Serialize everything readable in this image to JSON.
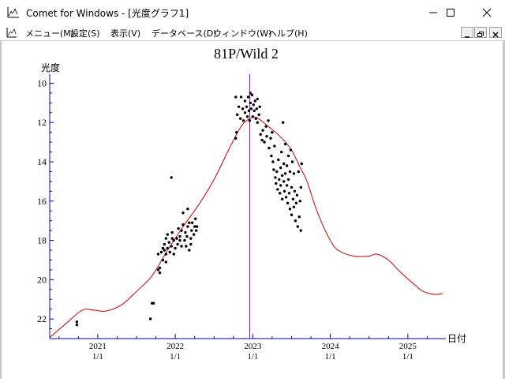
{
  "window": {
    "title": "Comet for Windows - [光度グラフ1]",
    "app_icon": "chart-app-icon",
    "controls": {
      "minimize": "minimize-icon",
      "maximize": "maximize-icon",
      "close": "close-icon"
    }
  },
  "menu": {
    "items": [
      {
        "label": "メニュー(M)"
      },
      {
        "label": "設定(S)"
      },
      {
        "label": "表示(V)"
      },
      {
        "label": "データベース(D)"
      },
      {
        "label": "ウィンドウ(W)"
      },
      {
        "label": "ヘルプ(H)"
      }
    ],
    "mdi_controls": {
      "minimize": "mdi-minimize-icon",
      "restore": "mdi-restore-icon",
      "close": "mdi-close-icon"
    }
  },
  "chart_data": {
    "type": "scatter",
    "title": "81P/Wild 2",
    "ylabel": "光度",
    "xlabel": "日付",
    "y_inverted": true,
    "ylim": [
      23,
      9.7
    ],
    "xlim": [
      2020.38,
      2025.47
    ],
    "yticks": [
      10,
      12,
      14,
      16,
      18,
      20,
      22
    ],
    "xticks": [
      {
        "value": 2021,
        "year": "2021",
        "date": "1/1"
      },
      {
        "value": 2022,
        "year": "2022",
        "date": "1/1"
      },
      {
        "value": 2023,
        "year": "2023",
        "date": "1/1"
      },
      {
        "value": 2024,
        "year": "2024",
        "date": "1/1"
      },
      {
        "value": 2025,
        "year": "2025",
        "date": "1/1"
      }
    ],
    "perihelion_marker": 2022.96,
    "colors": {
      "curve": "#cc0000",
      "points": "#000000",
      "marker": "#9900cc",
      "axes": "#0000aa"
    },
    "curve": [
      [
        2020.38,
        22.95
      ],
      [
        2020.6,
        22.2
      ],
      [
        2020.8,
        21.55
      ],
      [
        2020.95,
        21.55
      ],
      [
        2021.1,
        21.6
      ],
      [
        2021.3,
        21.3
      ],
      [
        2021.5,
        20.6
      ],
      [
        2021.7,
        19.8
      ],
      [
        2021.9,
        18.5
      ],
      [
        2022.1,
        17.3
      ],
      [
        2022.3,
        16.2
      ],
      [
        2022.5,
        14.9
      ],
      [
        2022.7,
        13.3
      ],
      [
        2022.85,
        12.2
      ],
      [
        2022.96,
        11.8
      ],
      [
        2023.05,
        11.75
      ],
      [
        2023.2,
        12.2
      ],
      [
        2023.35,
        12.7
      ],
      [
        2023.5,
        13.4
      ],
      [
        2023.6,
        14.2
      ],
      [
        2023.7,
        15.0
      ],
      [
        2023.8,
        16.2
      ],
      [
        2023.9,
        17.2
      ],
      [
        2024.0,
        18.0
      ],
      [
        2024.1,
        18.5
      ],
      [
        2024.3,
        18.8
      ],
      [
        2024.5,
        18.8
      ],
      [
        2024.6,
        18.7
      ],
      [
        2024.75,
        19.0
      ],
      [
        2024.9,
        19.6
      ],
      [
        2025.1,
        20.3
      ],
      [
        2025.2,
        20.6
      ],
      [
        2025.35,
        20.75
      ],
      [
        2025.45,
        20.7
      ]
    ],
    "observations": [
      [
        20.73,
        22.15
      ],
      [
        20.73,
        22.3
      ],
      [
        21.68,
        22.0
      ],
      [
        21.7,
        21.2
      ],
      [
        21.72,
        21.2
      ],
      [
        21.78,
        19.5
      ],
      [
        21.8,
        19.65
      ],
      [
        21.8,
        19.4
      ],
      [
        21.78,
        18.7
      ],
      [
        21.82,
        18.6
      ],
      [
        21.84,
        19.0
      ],
      [
        21.84,
        18.4
      ],
      [
        21.86,
        18.2
      ],
      [
        21.86,
        18.5
      ],
      [
        21.88,
        18.7
      ],
      [
        21.88,
        17.9
      ],
      [
        21.88,
        19.1
      ],
      [
        21.9,
        18.4
      ],
      [
        21.9,
        17.7
      ],
      [
        21.92,
        18.1
      ],
      [
        21.93,
        18.6
      ],
      [
        21.95,
        18.3
      ],
      [
        21.95,
        14.8
      ],
      [
        21.96,
        17.9
      ],
      [
        21.96,
        17.6
      ],
      [
        21.98,
        18.0
      ],
      [
        21.98,
        18.7
      ],
      [
        22.0,
        18.4
      ],
      [
        22.02,
        17.9
      ],
      [
        22.03,
        18.2
      ],
      [
        22.04,
        17.4
      ],
      [
        22.06,
        18.0
      ],
      [
        22.06,
        17.8
      ],
      [
        22.08,
        18.3
      ],
      [
        22.08,
        17.5
      ],
      [
        22.1,
        17.2
      ],
      [
        22.1,
        16.6
      ],
      [
        22.12,
        18.0
      ],
      [
        22.13,
        17.6
      ],
      [
        22.14,
        18.3
      ],
      [
        22.15,
        17.8
      ],
      [
        22.16,
        17.3
      ],
      [
        22.16,
        16.4
      ],
      [
        22.18,
        18.5
      ],
      [
        22.18,
        17.1
      ],
      [
        22.2,
        18.2
      ],
      [
        22.2,
        17.9
      ],
      [
        22.21,
        17.5
      ],
      [
        22.22,
        17.1
      ],
      [
        22.24,
        17.7
      ],
      [
        22.25,
        17.3
      ],
      [
        22.26,
        16.9
      ],
      [
        22.27,
        17.5
      ],
      [
        22.28,
        17.3
      ],
      [
        22.78,
        10.7
      ],
      [
        22.78,
        12.8
      ],
      [
        22.79,
        12.5
      ],
      [
        22.8,
        11.6
      ],
      [
        22.82,
        11.2
      ],
      [
        22.84,
        11.8
      ],
      [
        22.85,
        10.7
      ],
      [
        22.87,
        11.3
      ],
      [
        22.88,
        11.9
      ],
      [
        22.9,
        11.5
      ],
      [
        22.9,
        10.9
      ],
      [
        22.92,
        11.2
      ],
      [
        22.93,
        11.7
      ],
      [
        22.94,
        10.7
      ],
      [
        22.95,
        11.4
      ],
      [
        22.96,
        11.9
      ],
      [
        22.97,
        11.0
      ],
      [
        22.97,
        10.5
      ],
      [
        22.98,
        11.3
      ],
      [
        22.99,
        10.6
      ],
      [
        23.0,
        11.7
      ],
      [
        23.01,
        11.1
      ],
      [
        23.02,
        11.4
      ],
      [
        23.03,
        10.9
      ],
      [
        23.04,
        11.8
      ],
      [
        23.05,
        11.3
      ],
      [
        23.06,
        10.8
      ],
      [
        23.06,
        12.0
      ],
      [
        23.08,
        11.6
      ],
      [
        23.09,
        11.2
      ],
      [
        23.1,
        12.6
      ],
      [
        23.12,
        12.9
      ],
      [
        23.13,
        12.4
      ],
      [
        23.15,
        13.0
      ],
      [
        23.17,
        12.2
      ],
      [
        23.18,
        12.7
      ],
      [
        23.2,
        11.9
      ],
      [
        23.21,
        13.3
      ],
      [
        23.23,
        12.8
      ],
      [
        23.24,
        13.7
      ],
      [
        23.25,
        12.5
      ],
      [
        23.26,
        14.0
      ],
      [
        23.27,
        14.4
      ],
      [
        23.28,
        13.2
      ],
      [
        23.29,
        14.8
      ],
      [
        23.3,
        15.1
      ],
      [
        23.31,
        14.5
      ],
      [
        23.32,
        15.4
      ],
      [
        23.33,
        13.9
      ],
      [
        23.34,
        14.9
      ],
      [
        23.35,
        15.6
      ],
      [
        23.36,
        14.3
      ],
      [
        23.36,
        15.2
      ],
      [
        23.37,
        13.5
      ],
      [
        23.38,
        14.7
      ],
      [
        23.38,
        15.9
      ],
      [
        23.39,
        12.0
      ],
      [
        23.4,
        15.0
      ],
      [
        23.4,
        14.1
      ],
      [
        23.41,
        15.5
      ],
      [
        23.42,
        14.6
      ],
      [
        23.42,
        13.1
      ],
      [
        23.43,
        15.8
      ],
      [
        23.44,
        14.2
      ],
      [
        23.44,
        15.2
      ],
      [
        23.45,
        16.1
      ],
      [
        23.46,
        13.7
      ],
      [
        23.46,
        14.9
      ],
      [
        23.47,
        15.6
      ],
      [
        23.48,
        16.4
      ],
      [
        23.48,
        14.5
      ],
      [
        23.49,
        13.4
      ],
      [
        23.5,
        15.3
      ],
      [
        23.5,
        16.7
      ],
      [
        23.51,
        14.0
      ],
      [
        23.52,
        15.9
      ],
      [
        23.53,
        16.3
      ],
      [
        23.53,
        14.6
      ],
      [
        23.54,
        15.5
      ],
      [
        23.55,
        17.0
      ],
      [
        23.56,
        16.1
      ],
      [
        23.57,
        15.7
      ],
      [
        23.58,
        17.3
      ],
      [
        23.59,
        14.5
      ],
      [
        23.6,
        16.8
      ],
      [
        23.61,
        16.0
      ],
      [
        23.62,
        17.5
      ],
      [
        23.62,
        15.3
      ],
      [
        23.63,
        14.1
      ]
    ]
  }
}
